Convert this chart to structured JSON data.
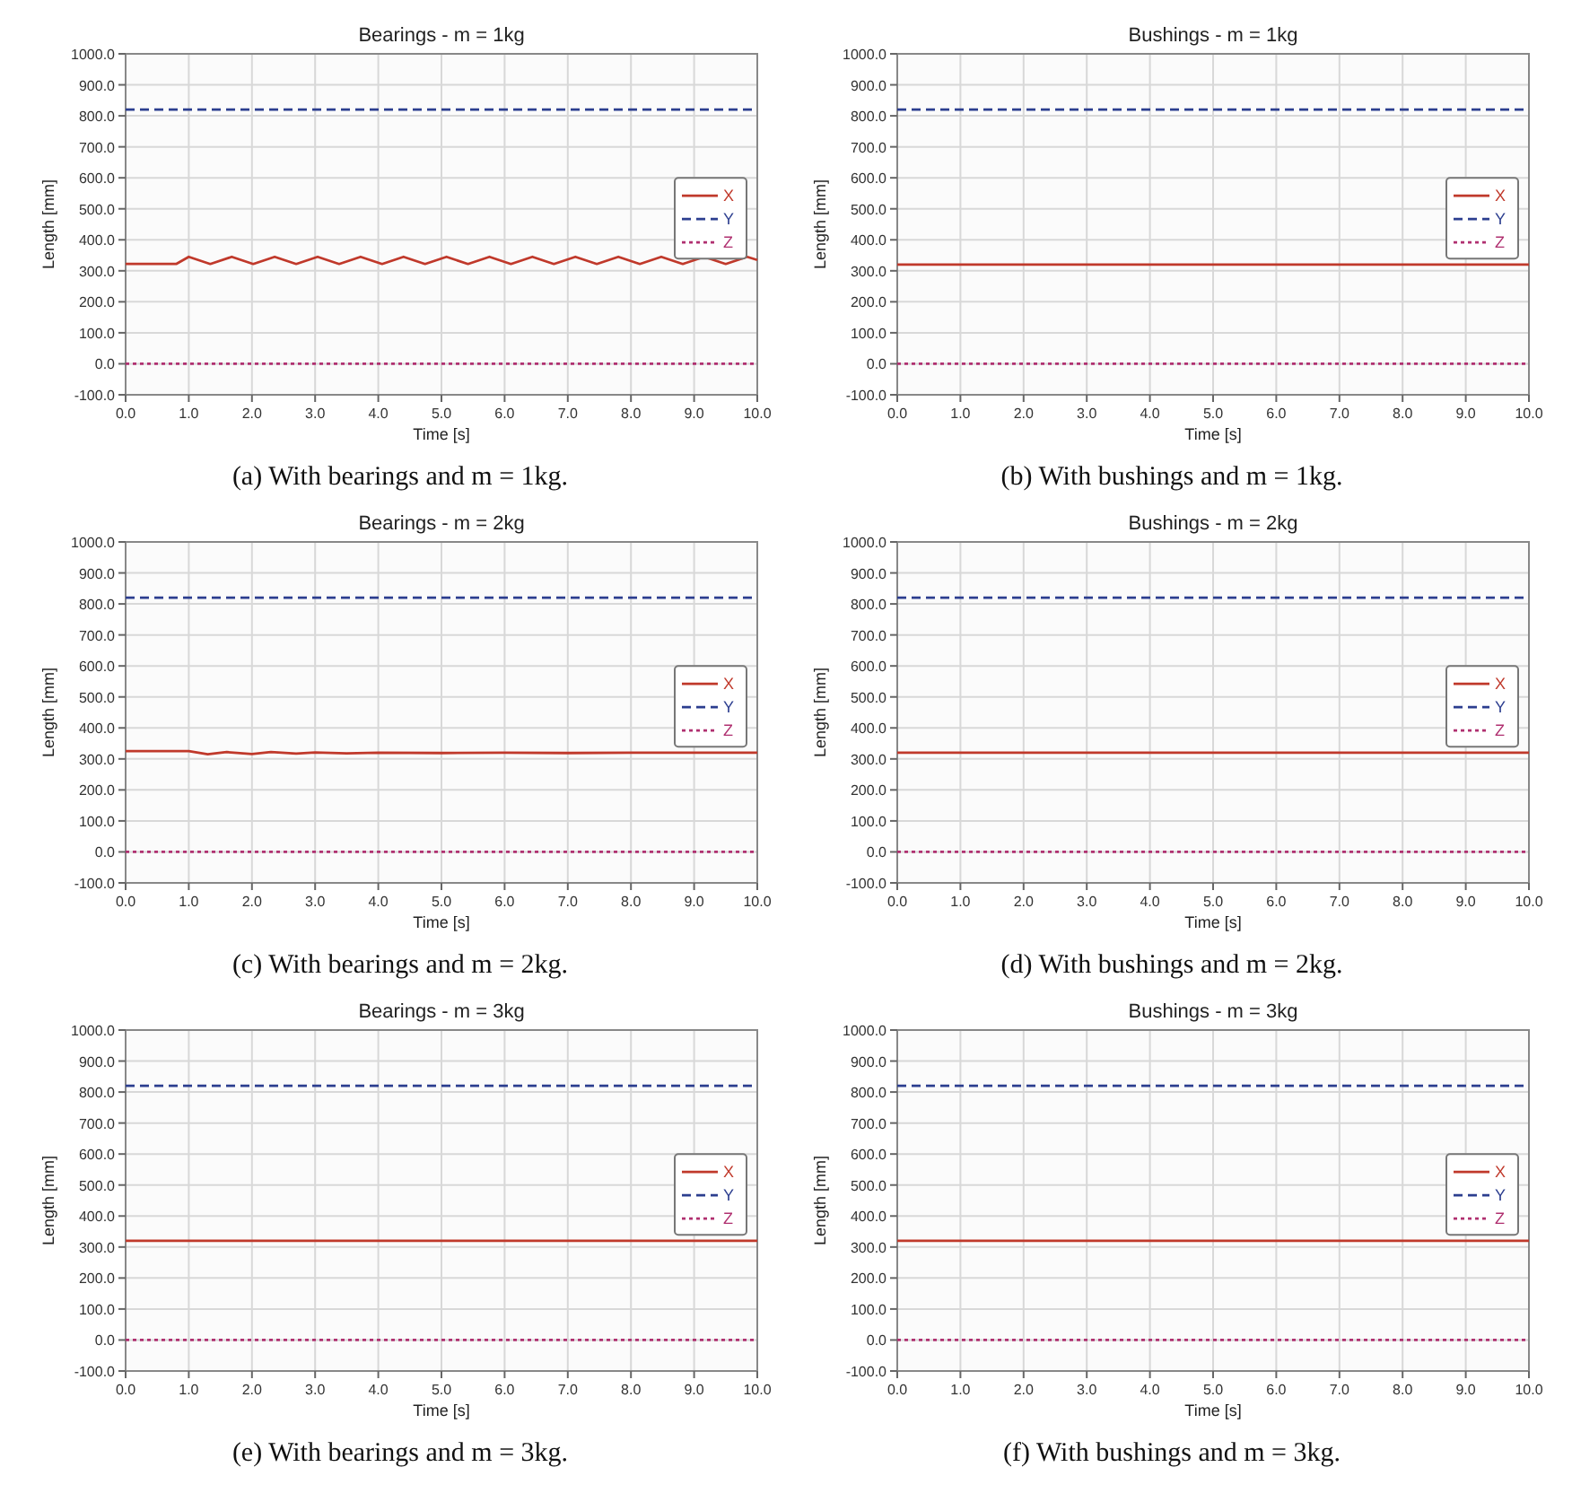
{
  "chart_data": [
    {
      "type": "line",
      "title": "Bearings - m = 1kg",
      "xlabel": "Time [s]",
      "ylabel": "Length [mm]",
      "annotations": [
        "(a)  With bearings and m = 1kg."
      ],
      "xlim": [
        0,
        10
      ],
      "ylim": [
        -100,
        1000
      ],
      "xticks": [
        {
          "value": 0,
          "label": "0.0"
        },
        {
          "value": 1,
          "label": "1.0"
        },
        {
          "value": 2,
          "label": "2.0"
        },
        {
          "value": 3,
          "label": "3.0"
        },
        {
          "value": 4,
          "label": "4.0"
        },
        {
          "value": 5,
          "label": "5.0"
        },
        {
          "value": 6,
          "label": "6.0"
        },
        {
          "value": 7,
          "label": "7.0"
        },
        {
          "value": 8,
          "label": "8.0"
        },
        {
          "value": 9,
          "label": "9.0"
        },
        {
          "value": 10,
          "label": "10.0"
        }
      ],
      "yticks": [
        {
          "value": -100,
          "label": "-100.0"
        },
        {
          "value": 0,
          "label": "0.0"
        },
        {
          "value": 100,
          "label": "100.0"
        },
        {
          "value": 200,
          "label": "200.0"
        },
        {
          "value": 300,
          "label": "300.0"
        },
        {
          "value": 400,
          "label": "400.0"
        },
        {
          "value": 500,
          "label": "500.0"
        },
        {
          "value": 600,
          "label": "600.0"
        },
        {
          "value": 700,
          "label": "700.0"
        },
        {
          "value": 800,
          "label": "800.0"
        },
        {
          "value": 900,
          "label": "900.0"
        },
        {
          "value": 1000,
          "label": "1000.0"
        }
      ],
      "grid": true,
      "legend": "right",
      "series": [
        {
          "name": "X",
          "color": "#c0392b",
          "line_style": "solid",
          "x": [
            0,
            0.8,
            1.0,
            1.34,
            1.68,
            2.02,
            2.36,
            2.7,
            3.04,
            3.38,
            3.72,
            4.06,
            4.4,
            4.74,
            5.08,
            5.42,
            5.76,
            6.1,
            6.44,
            6.78,
            7.12,
            7.46,
            7.8,
            8.14,
            8.48,
            8.82,
            9.16,
            9.5,
            9.84,
            10
          ],
          "values": [
            322,
            322,
            345,
            322,
            345,
            322,
            345,
            322,
            345,
            322,
            345,
            322,
            345,
            322,
            345,
            322,
            345,
            322,
            345,
            322,
            345,
            322,
            345,
            322,
            345,
            322,
            345,
            322,
            345,
            335
          ]
        },
        {
          "name": "Y",
          "color": "#2c3e8f",
          "line_style": "dashed",
          "x": [
            0,
            10
          ],
          "values": [
            820,
            820
          ]
        },
        {
          "name": "Z",
          "color": "#b03070",
          "line_style": "dotted",
          "x": [
            0,
            10
          ],
          "values": [
            0,
            0
          ]
        }
      ]
    },
    {
      "type": "line",
      "title": "Bushings - m = 1kg",
      "xlabel": "Time [s]",
      "ylabel": "Length [mm]",
      "annotations": [
        "(b) With bushings and m = 1kg."
      ],
      "xlim": [
        0,
        10
      ],
      "ylim": [
        -100,
        1000
      ],
      "xticks": [
        {
          "value": 0,
          "label": "0.0"
        },
        {
          "value": 1,
          "label": "1.0"
        },
        {
          "value": 2,
          "label": "2.0"
        },
        {
          "value": 3,
          "label": "3.0"
        },
        {
          "value": 4,
          "label": "4.0"
        },
        {
          "value": 5,
          "label": "5.0"
        },
        {
          "value": 6,
          "label": "6.0"
        },
        {
          "value": 7,
          "label": "7.0"
        },
        {
          "value": 8,
          "label": "8.0"
        },
        {
          "value": 9,
          "label": "9.0"
        },
        {
          "value": 10,
          "label": "10.0"
        }
      ],
      "yticks": [
        {
          "value": -100,
          "label": "-100.0"
        },
        {
          "value": 0,
          "label": "0.0"
        },
        {
          "value": 100,
          "label": "100.0"
        },
        {
          "value": 200,
          "label": "200.0"
        },
        {
          "value": 300,
          "label": "300.0"
        },
        {
          "value": 400,
          "label": "400.0"
        },
        {
          "value": 500,
          "label": "500.0"
        },
        {
          "value": 600,
          "label": "600.0"
        },
        {
          "value": 700,
          "label": "700.0"
        },
        {
          "value": 800,
          "label": "800.0"
        },
        {
          "value": 900,
          "label": "900.0"
        },
        {
          "value": 1000,
          "label": "1000.0"
        }
      ],
      "grid": true,
      "legend": "right",
      "series": [
        {
          "name": "X",
          "color": "#c0392b",
          "line_style": "solid",
          "x": [
            0,
            10
          ],
          "values": [
            320,
            320
          ]
        },
        {
          "name": "Y",
          "color": "#2c3e8f",
          "line_style": "dashed",
          "x": [
            0,
            10
          ],
          "values": [
            820,
            820
          ]
        },
        {
          "name": "Z",
          "color": "#b03070",
          "line_style": "dotted",
          "x": [
            0,
            10
          ],
          "values": [
            0,
            0
          ]
        }
      ]
    },
    {
      "type": "line",
      "title": "Bearings - m = 2kg",
      "xlabel": "Time [s]",
      "ylabel": "Length [mm]",
      "annotations": [
        "(c) With bearings and m = 2kg."
      ],
      "xlim": [
        0,
        10
      ],
      "ylim": [
        -100,
        1000
      ],
      "xticks": [
        {
          "value": 0,
          "label": "0.0"
        },
        {
          "value": 1,
          "label": "1.0"
        },
        {
          "value": 2,
          "label": "2.0"
        },
        {
          "value": 3,
          "label": "3.0"
        },
        {
          "value": 4,
          "label": "4.0"
        },
        {
          "value": 5,
          "label": "5.0"
        },
        {
          "value": 6,
          "label": "6.0"
        },
        {
          "value": 7,
          "label": "7.0"
        },
        {
          "value": 8,
          "label": "8.0"
        },
        {
          "value": 9,
          "label": "9.0"
        },
        {
          "value": 10,
          "label": "10.0"
        }
      ],
      "yticks": [
        {
          "value": -100,
          "label": "-100.0"
        },
        {
          "value": 0,
          "label": "0.0"
        },
        {
          "value": 100,
          "label": "100.0"
        },
        {
          "value": 200,
          "label": "200.0"
        },
        {
          "value": 300,
          "label": "300.0"
        },
        {
          "value": 400,
          "label": "400.0"
        },
        {
          "value": 500,
          "label": "500.0"
        },
        {
          "value": 600,
          "label": "600.0"
        },
        {
          "value": 700,
          "label": "700.0"
        },
        {
          "value": 800,
          "label": "800.0"
        },
        {
          "value": 900,
          "label": "900.0"
        },
        {
          "value": 1000,
          "label": "1000.0"
        }
      ],
      "grid": true,
      "legend": "right",
      "series": [
        {
          "name": "X",
          "color": "#c0392b",
          "line_style": "solid",
          "x": [
            0,
            1.0,
            1.3,
            1.6,
            2.0,
            2.3,
            2.7,
            3.0,
            3.5,
            4.0,
            5.0,
            6.0,
            7.0,
            8.0,
            9.0,
            10
          ],
          "values": [
            325,
            325,
            315,
            322,
            316,
            322,
            317,
            321,
            318,
            320,
            319,
            320,
            319,
            320,
            320,
            320
          ]
        },
        {
          "name": "Y",
          "color": "#2c3e8f",
          "line_style": "dashed",
          "x": [
            0,
            10
          ],
          "values": [
            820,
            820
          ]
        },
        {
          "name": "Z",
          "color": "#b03070",
          "line_style": "dotted",
          "x": [
            0,
            10
          ],
          "values": [
            0,
            0
          ]
        }
      ]
    },
    {
      "type": "line",
      "title": "Bushings - m = 2kg",
      "xlabel": "Time [s]",
      "ylabel": "Length [mm]",
      "annotations": [
        "(d) With bushings and m = 2kg."
      ],
      "xlim": [
        0,
        10
      ],
      "ylim": [
        -100,
        1000
      ],
      "xticks": [
        {
          "value": 0,
          "label": "0.0"
        },
        {
          "value": 1,
          "label": "1.0"
        },
        {
          "value": 2,
          "label": "2.0"
        },
        {
          "value": 3,
          "label": "3.0"
        },
        {
          "value": 4,
          "label": "4.0"
        },
        {
          "value": 5,
          "label": "5.0"
        },
        {
          "value": 6,
          "label": "6.0"
        },
        {
          "value": 7,
          "label": "7.0"
        },
        {
          "value": 8,
          "label": "8.0"
        },
        {
          "value": 9,
          "label": "9.0"
        },
        {
          "value": 10,
          "label": "10.0"
        }
      ],
      "yticks": [
        {
          "value": -100,
          "label": "-100.0"
        },
        {
          "value": 0,
          "label": "0.0"
        },
        {
          "value": 100,
          "label": "100.0"
        },
        {
          "value": 200,
          "label": "200.0"
        },
        {
          "value": 300,
          "label": "300.0"
        },
        {
          "value": 400,
          "label": "400.0"
        },
        {
          "value": 500,
          "label": "500.0"
        },
        {
          "value": 600,
          "label": "600.0"
        },
        {
          "value": 700,
          "label": "700.0"
        },
        {
          "value": 800,
          "label": "800.0"
        },
        {
          "value": 900,
          "label": "900.0"
        },
        {
          "value": 1000,
          "label": "1000.0"
        }
      ],
      "grid": true,
      "legend": "right",
      "series": [
        {
          "name": "X",
          "color": "#c0392b",
          "line_style": "solid",
          "x": [
            0,
            10
          ],
          "values": [
            320,
            320
          ]
        },
        {
          "name": "Y",
          "color": "#2c3e8f",
          "line_style": "dashed",
          "x": [
            0,
            10
          ],
          "values": [
            820,
            820
          ]
        },
        {
          "name": "Z",
          "color": "#b03070",
          "line_style": "dotted",
          "x": [
            0,
            10
          ],
          "values": [
            0,
            0
          ]
        }
      ]
    },
    {
      "type": "line",
      "title": "Bearings - m = 3kg",
      "xlabel": "Time [s]",
      "ylabel": "Length [mm]",
      "annotations": [
        "(e) With bearings and m = 3kg."
      ],
      "xlim": [
        0,
        10
      ],
      "ylim": [
        -100,
        1000
      ],
      "xticks": [
        {
          "value": 0,
          "label": "0.0"
        },
        {
          "value": 1,
          "label": "1.0"
        },
        {
          "value": 2,
          "label": "2.0"
        },
        {
          "value": 3,
          "label": "3.0"
        },
        {
          "value": 4,
          "label": "4.0"
        },
        {
          "value": 5,
          "label": "5.0"
        },
        {
          "value": 6,
          "label": "6.0"
        },
        {
          "value": 7,
          "label": "7.0"
        },
        {
          "value": 8,
          "label": "8.0"
        },
        {
          "value": 9,
          "label": "9.0"
        },
        {
          "value": 10,
          "label": "10.0"
        }
      ],
      "yticks": [
        {
          "value": -100,
          "label": "-100.0"
        },
        {
          "value": 0,
          "label": "0.0"
        },
        {
          "value": 100,
          "label": "100.0"
        },
        {
          "value": 200,
          "label": "200.0"
        },
        {
          "value": 300,
          "label": "300.0"
        },
        {
          "value": 400,
          "label": "400.0"
        },
        {
          "value": 500,
          "label": "500.0"
        },
        {
          "value": 600,
          "label": "600.0"
        },
        {
          "value": 700,
          "label": "700.0"
        },
        {
          "value": 800,
          "label": "800.0"
        },
        {
          "value": 900,
          "label": "900.0"
        },
        {
          "value": 1000,
          "label": "1000.0"
        }
      ],
      "grid": true,
      "legend": "right",
      "series": [
        {
          "name": "X",
          "color": "#c0392b",
          "line_style": "solid",
          "x": [
            0,
            10
          ],
          "values": [
            320,
            320
          ]
        },
        {
          "name": "Y",
          "color": "#2c3e8f",
          "line_style": "dashed",
          "x": [
            0,
            10
          ],
          "values": [
            820,
            820
          ]
        },
        {
          "name": "Z",
          "color": "#b03070",
          "line_style": "dotted",
          "x": [
            0,
            10
          ],
          "values": [
            0,
            0
          ]
        }
      ]
    },
    {
      "type": "line",
      "title": "Bushings - m = 3kg",
      "xlabel": "Time [s]",
      "ylabel": "Length [mm]",
      "annotations": [
        "(f) With bushings and m = 3kg."
      ],
      "xlim": [
        0,
        10
      ],
      "ylim": [
        -100,
        1000
      ],
      "xticks": [
        {
          "value": 0,
          "label": "0.0"
        },
        {
          "value": 1,
          "label": "1.0"
        },
        {
          "value": 2,
          "label": "2.0"
        },
        {
          "value": 3,
          "label": "3.0"
        },
        {
          "value": 4,
          "label": "4.0"
        },
        {
          "value": 5,
          "label": "5.0"
        },
        {
          "value": 6,
          "label": "6.0"
        },
        {
          "value": 7,
          "label": "7.0"
        },
        {
          "value": 8,
          "label": "8.0"
        },
        {
          "value": 9,
          "label": "9.0"
        },
        {
          "value": 10,
          "label": "10.0"
        }
      ],
      "yticks": [
        {
          "value": -100,
          "label": "-100.0"
        },
        {
          "value": 0,
          "label": "0.0"
        },
        {
          "value": 100,
          "label": "100.0"
        },
        {
          "value": 200,
          "label": "200.0"
        },
        {
          "value": 300,
          "label": "300.0"
        },
        {
          "value": 400,
          "label": "400.0"
        },
        {
          "value": 500,
          "label": "500.0"
        },
        {
          "value": 600,
          "label": "600.0"
        },
        {
          "value": 700,
          "label": "700.0"
        },
        {
          "value": 800,
          "label": "800.0"
        },
        {
          "value": 900,
          "label": "900.0"
        },
        {
          "value": 1000,
          "label": "1000.0"
        }
      ],
      "grid": true,
      "legend": "right",
      "series": [
        {
          "name": "X",
          "color": "#c0392b",
          "line_style": "solid",
          "x": [
            0,
            10
          ],
          "values": [
            320,
            320
          ]
        },
        {
          "name": "Y",
          "color": "#2c3e8f",
          "line_style": "dashed",
          "x": [
            0,
            10
          ],
          "values": [
            820,
            820
          ]
        },
        {
          "name": "Z",
          "color": "#b03070",
          "line_style": "dotted",
          "x": [
            0,
            10
          ],
          "values": [
            0,
            0
          ]
        }
      ]
    }
  ]
}
